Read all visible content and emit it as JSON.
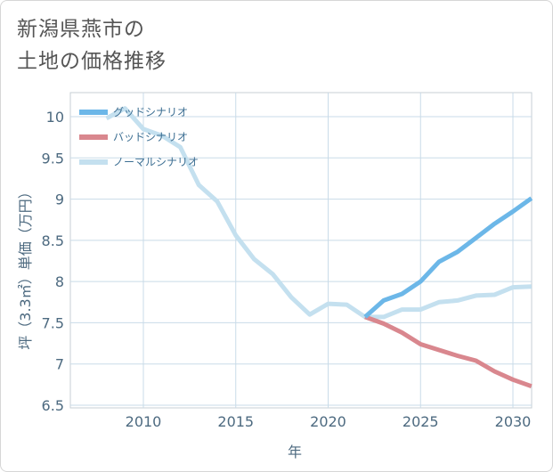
{
  "title": "新潟県燕市の\n土地の価格推移",
  "chart_data": {
    "type": "line",
    "xlabel": "年",
    "ylabel": "坪（3.3㎡）単価（万円）",
    "xlim": [
      2006,
      2031
    ],
    "ylim": [
      6.5,
      10.5
    ],
    "x_ticks": [
      2010,
      2015,
      2020,
      2025,
      2030
    ],
    "y_ticks": [
      6.5,
      7,
      7.5,
      8,
      8.5,
      9,
      9.5,
      10
    ],
    "legend_position": "top-left",
    "grid": true,
    "series": [
      {
        "name": "グッドシナリオ",
        "color": "#6cb7e8",
        "x": [
          2022,
          2023,
          2024,
          2025,
          2026,
          2027,
          2028,
          2029,
          2030,
          2031
        ],
        "y": [
          7.57,
          7.77,
          7.85,
          8.0,
          8.24,
          8.36,
          8.53,
          8.7,
          8.85,
          9.01
        ]
      },
      {
        "name": "バッドシナリオ",
        "color": "#d9878e",
        "x": [
          2022,
          2023,
          2024,
          2025,
          2026,
          2027,
          2028,
          2029,
          2030,
          2031
        ],
        "y": [
          7.57,
          7.49,
          7.38,
          7.24,
          7.17,
          7.1,
          7.04,
          6.91,
          6.81,
          6.73
        ]
      },
      {
        "name": "ノーマルシナリオ",
        "color": "#c4e0ef",
        "x": [
          2008,
          2009,
          2010,
          2011,
          2012,
          2013,
          2014,
          2015,
          2016,
          2017,
          2018,
          2019,
          2020,
          2021,
          2022,
          2023,
          2024,
          2025,
          2026,
          2027,
          2028,
          2029,
          2030,
          2031
        ],
        "y": [
          9.98,
          10.1,
          9.85,
          9.77,
          9.63,
          9.17,
          8.97,
          8.56,
          8.27,
          8.09,
          7.81,
          7.6,
          7.73,
          7.72,
          7.57,
          7.57,
          7.66,
          7.66,
          7.75,
          7.77,
          7.83,
          7.84,
          7.93,
          7.94
        ]
      }
    ]
  }
}
